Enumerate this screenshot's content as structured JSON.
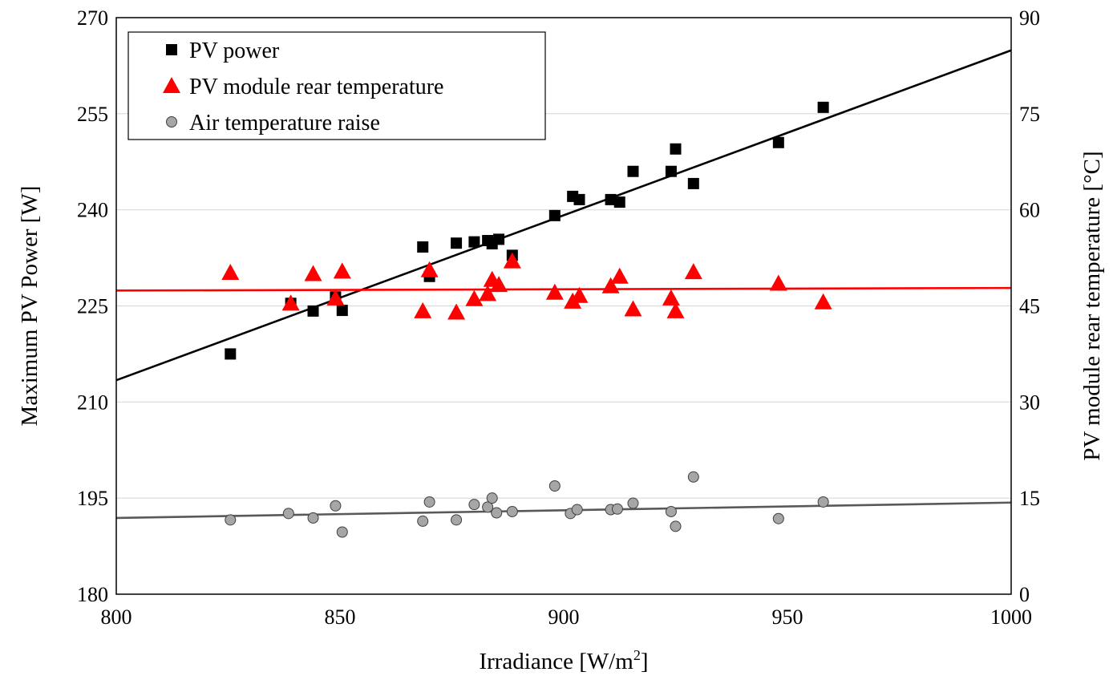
{
  "chart_data": {
    "type": "scatter",
    "title": "",
    "xlabel": "Irradiance [W/m",
    "xlabel_sup": "2",
    "xlabel_end": "]",
    "ylabel_left": "Maximum PV Power [W]",
    "ylabel_right": "PV module rear temperature [°C]",
    "xlim": [
      800,
      1000
    ],
    "ylim_left": [
      180,
      270
    ],
    "ylim_right": [
      0,
      90
    ],
    "x_ticks": [
      "800",
      "850",
      "900",
      "950",
      "1000"
    ],
    "y_left_ticks": [
      "180",
      "195",
      "210",
      "225",
      "240",
      "255",
      "270"
    ],
    "y_right_ticks": [
      "0",
      "15",
      "30",
      "45",
      "60",
      "75",
      "90"
    ],
    "grid": "horizontal",
    "legend_position": "top-left",
    "series": [
      {
        "name": "PV power",
        "axis": "left",
        "marker": "square",
        "color": "#000000",
        "points": [
          [
            825.5,
            217.5
          ],
          [
            839,
            225.4
          ],
          [
            844,
            224.2
          ],
          [
            849,
            226.4
          ],
          [
            850.5,
            224.3
          ],
          [
            868.5,
            234.2
          ],
          [
            870,
            229.6
          ],
          [
            876,
            234.8
          ],
          [
            880,
            235
          ],
          [
            883,
            235.2
          ],
          [
            884,
            234.7
          ],
          [
            885.5,
            235.4
          ],
          [
            888.5,
            232.9
          ],
          [
            898,
            239.1
          ],
          [
            902,
            242.1
          ],
          [
            903.5,
            241.6
          ],
          [
            910.5,
            241.6
          ],
          [
            912.5,
            241.2
          ],
          [
            915.5,
            246
          ],
          [
            924,
            246
          ],
          [
            925,
            249.5
          ],
          [
            929,
            244.1
          ],
          [
            948,
            250.5
          ],
          [
            958,
            256
          ]
        ]
      },
      {
        "name": "PV module rear temperature",
        "axis": "right",
        "marker": "triangle",
        "color": "#ff0000",
        "points": [
          [
            825.5,
            50.2
          ],
          [
            839,
            45.4
          ],
          [
            844,
            50
          ],
          [
            849,
            46.2
          ],
          [
            850.5,
            50.4
          ],
          [
            868.5,
            44.2
          ],
          [
            870,
            50.6
          ],
          [
            876,
            44
          ],
          [
            880,
            46.1
          ],
          [
            883,
            46.9
          ],
          [
            884,
            49.1
          ],
          [
            885.5,
            48.3
          ],
          [
            888.5,
            52
          ],
          [
            898,
            47.1
          ],
          [
            902,
            45.7
          ],
          [
            903.5,
            46.6
          ],
          [
            910.5,
            48.1
          ],
          [
            912.5,
            49.6
          ],
          [
            915.5,
            44.5
          ],
          [
            924,
            46.2
          ],
          [
            925,
            44.2
          ],
          [
            929,
            50.3
          ],
          [
            948,
            48.5
          ],
          [
            958,
            45.6
          ]
        ]
      },
      {
        "name": "Air temperature raise",
        "axis": "right",
        "marker": "circle",
        "color": "#a6a6a6",
        "points": [
          [
            825.5,
            11.6
          ],
          [
            838.5,
            12.6
          ],
          [
            844,
            11.9
          ],
          [
            849,
            13.8
          ],
          [
            850.5,
            9.7
          ],
          [
            868.5,
            11.4
          ],
          [
            870,
            14.4
          ],
          [
            876,
            11.6
          ],
          [
            880,
            14
          ],
          [
            883,
            13.6
          ],
          [
            884,
            15
          ],
          [
            885,
            12.7
          ],
          [
            888.5,
            12.9
          ],
          [
            898,
            16.9
          ],
          [
            901.5,
            12.6
          ],
          [
            903,
            13.2
          ],
          [
            910.5,
            13.2
          ],
          [
            912,
            13.3
          ],
          [
            915.5,
            14.2
          ],
          [
            924,
            12.9
          ],
          [
            925,
            10.6
          ],
          [
            929,
            18.3
          ],
          [
            948,
            11.8
          ],
          [
            958,
            14.4
          ]
        ]
      }
    ],
    "trendlines": [
      {
        "series": "PV power",
        "axis": "left",
        "color": "#000000",
        "x": [
          800,
          1000
        ],
        "y": [
          213.4,
          264.9
        ]
      },
      {
        "series": "PV module rear temperature",
        "axis": "right",
        "color": "#ff0000",
        "x": [
          800,
          1000
        ],
        "y": [
          47.4,
          47.8
        ]
      },
      {
        "series": "Air temperature raise",
        "axis": "right",
        "color": "#595959",
        "x": [
          800,
          1000
        ],
        "y": [
          11.9,
          14.3
        ]
      }
    ]
  }
}
